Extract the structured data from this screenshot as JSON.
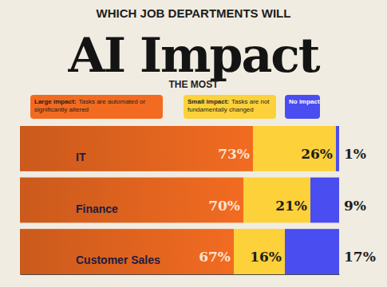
{
  "chart_data": {
    "type": "bar",
    "orientation": "horizontal",
    "stacked": true,
    "data_labels": true,
    "tick_labels": false,
    "grid": false,
    "title_top": "WHICH JOB DEPARTMENTS WILL",
    "title": "AI Impact",
    "title_bottom": "THE MOST",
    "categories": [
      "IT",
      "Finance",
      "Customer Sales"
    ],
    "xlim": [
      0,
      100
    ],
    "series": [
      {
        "name": "Large impact:",
        "description": "Tasks are automated or significantly altered",
        "color": "#f26b21",
        "values": [
          73,
          70,
          67
        ],
        "value_labels": [
          "73%",
          "70%",
          "67%"
        ]
      },
      {
        "name": "Small impact:",
        "description": "Tasks are not fundamentally changed",
        "color": "#fcd13a",
        "values": [
          26,
          21,
          16
        ],
        "value_labels": [
          "26%",
          "21%",
          "16%"
        ]
      },
      {
        "name": "No impact",
        "color": "#4a4df0",
        "values": [
          1,
          9,
          17
        ],
        "value_labels": [
          "1%",
          "9%",
          "17%"
        ]
      }
    ]
  }
}
